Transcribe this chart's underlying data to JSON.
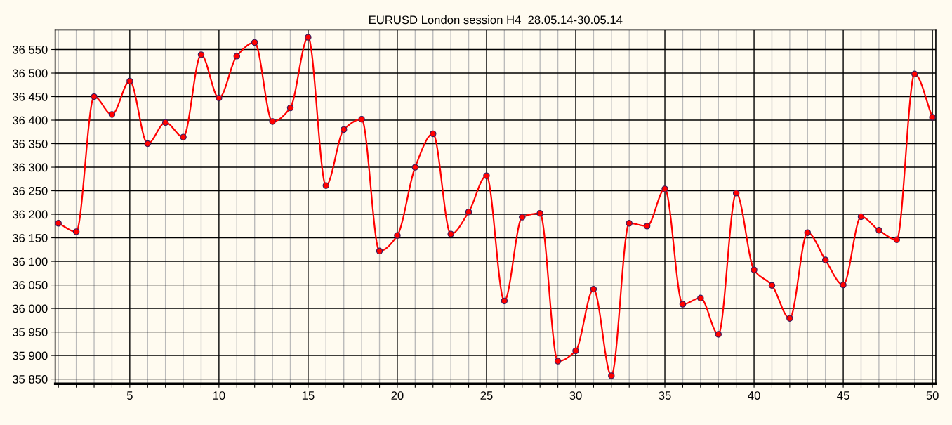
{
  "chart_data": {
    "type": "line",
    "title": "EURUSD London session H4  28.05.14-30.05.14",
    "x": [
      1,
      2,
      3,
      4,
      5,
      6,
      7,
      8,
      9,
      10,
      11,
      12,
      13,
      14,
      15,
      16,
      17,
      18,
      19,
      20,
      21,
      22,
      23,
      24,
      25,
      26,
      27,
      28,
      29,
      30,
      31,
      32,
      33,
      34,
      35,
      36,
      37,
      38,
      39,
      40,
      41,
      42,
      43,
      44,
      45,
      46,
      47,
      48,
      49,
      50
    ],
    "series": [
      {
        "color": "#ff0000",
        "values": [
          36181,
          36163,
          36450,
          36412,
          36483,
          36350,
          36395,
          36364,
          36539,
          36447,
          36536,
          36565,
          36397,
          36426,
          36576,
          36261,
          36380,
          36402,
          36122,
          36155,
          36300,
          36371,
          36158,
          36205,
          36282,
          36016,
          36194,
          36202,
          35888,
          35910,
          36041,
          35857,
          36181,
          36175,
          36254,
          36009,
          36022,
          35945,
          36245,
          36082,
          36049,
          35979,
          36161,
          36103,
          36050,
          36195,
          36166,
          36146,
          36498,
          36406
        ]
      }
    ],
    "xlim": [
      0.82,
      50.19
    ],
    "ylim": [
      35840,
      36592
    ],
    "xticks": [
      {
        "value": 1,
        "label": null
      },
      {
        "value": 2,
        "label": null
      },
      {
        "value": 3,
        "label": null
      },
      {
        "value": 4,
        "label": null
      },
      5,
      {
        "value": 6,
        "label": null
      },
      {
        "value": 7,
        "label": null
      },
      {
        "value": 8,
        "label": null
      },
      {
        "value": 9,
        "label": null
      },
      10,
      {
        "value": 11,
        "label": null
      },
      {
        "value": 12,
        "label": null
      },
      {
        "value": 13,
        "label": null
      },
      {
        "value": 14,
        "label": null
      },
      15,
      {
        "value": 16,
        "label": null
      },
      {
        "value": 17,
        "label": null
      },
      {
        "value": 18,
        "label": null
      },
      {
        "value": 19,
        "label": null
      },
      20,
      {
        "value": 21,
        "label": null
      },
      {
        "value": 22,
        "label": null
      },
      {
        "value": 23,
        "label": null
      },
      {
        "value": 24,
        "label": null
      },
      25,
      {
        "value": 26,
        "label": null
      },
      {
        "value": 27,
        "label": null
      },
      {
        "value": 28,
        "label": null
      },
      {
        "value": 29,
        "label": null
      },
      30,
      {
        "value": 31,
        "label": null
      },
      {
        "value": 32,
        "label": null
      },
      {
        "value": 33,
        "label": null
      },
      {
        "value": 34,
        "label": null
      },
      35,
      {
        "value": 36,
        "label": null
      },
      {
        "value": 37,
        "label": null
      },
      {
        "value": 38,
        "label": null
      },
      {
        "value": 39,
        "label": null
      },
      40,
      {
        "value": 41,
        "label": null
      },
      {
        "value": 42,
        "label": null
      },
      {
        "value": 43,
        "label": null
      },
      {
        "value": 44,
        "label": null
      },
      45,
      {
        "value": 46,
        "label": null
      },
      {
        "value": 47,
        "label": null
      },
      {
        "value": 48,
        "label": null
      },
      {
        "value": 49,
        "label": null
      },
      50
    ],
    "yticks": [
      {
        "value": 35850,
        "label": "35 850"
      },
      {
        "value": 35900,
        "label": "35 900"
      },
      {
        "value": 35950,
        "label": "35 950"
      },
      {
        "value": 36000,
        "label": "36 000"
      },
      {
        "value": 36050,
        "label": "36 050"
      },
      {
        "value": 36100,
        "label": "36 100"
      },
      {
        "value": 36150,
        "label": "36 150"
      },
      {
        "value": 36200,
        "label": "36 200"
      },
      {
        "value": 36250,
        "label": "36 250"
      },
      {
        "value": 36300,
        "label": "36 300"
      },
      {
        "value": 36350,
        "label": "36 350"
      },
      {
        "value": 36400,
        "label": "36 400"
      },
      {
        "value": 36450,
        "label": "36 450"
      },
      {
        "value": 36500,
        "label": "36 500"
      },
      {
        "value": 36550,
        "label": "36 550"
      }
    ],
    "grid": true,
    "marker": "circle",
    "line_style": "solid",
    "legend": false
  }
}
